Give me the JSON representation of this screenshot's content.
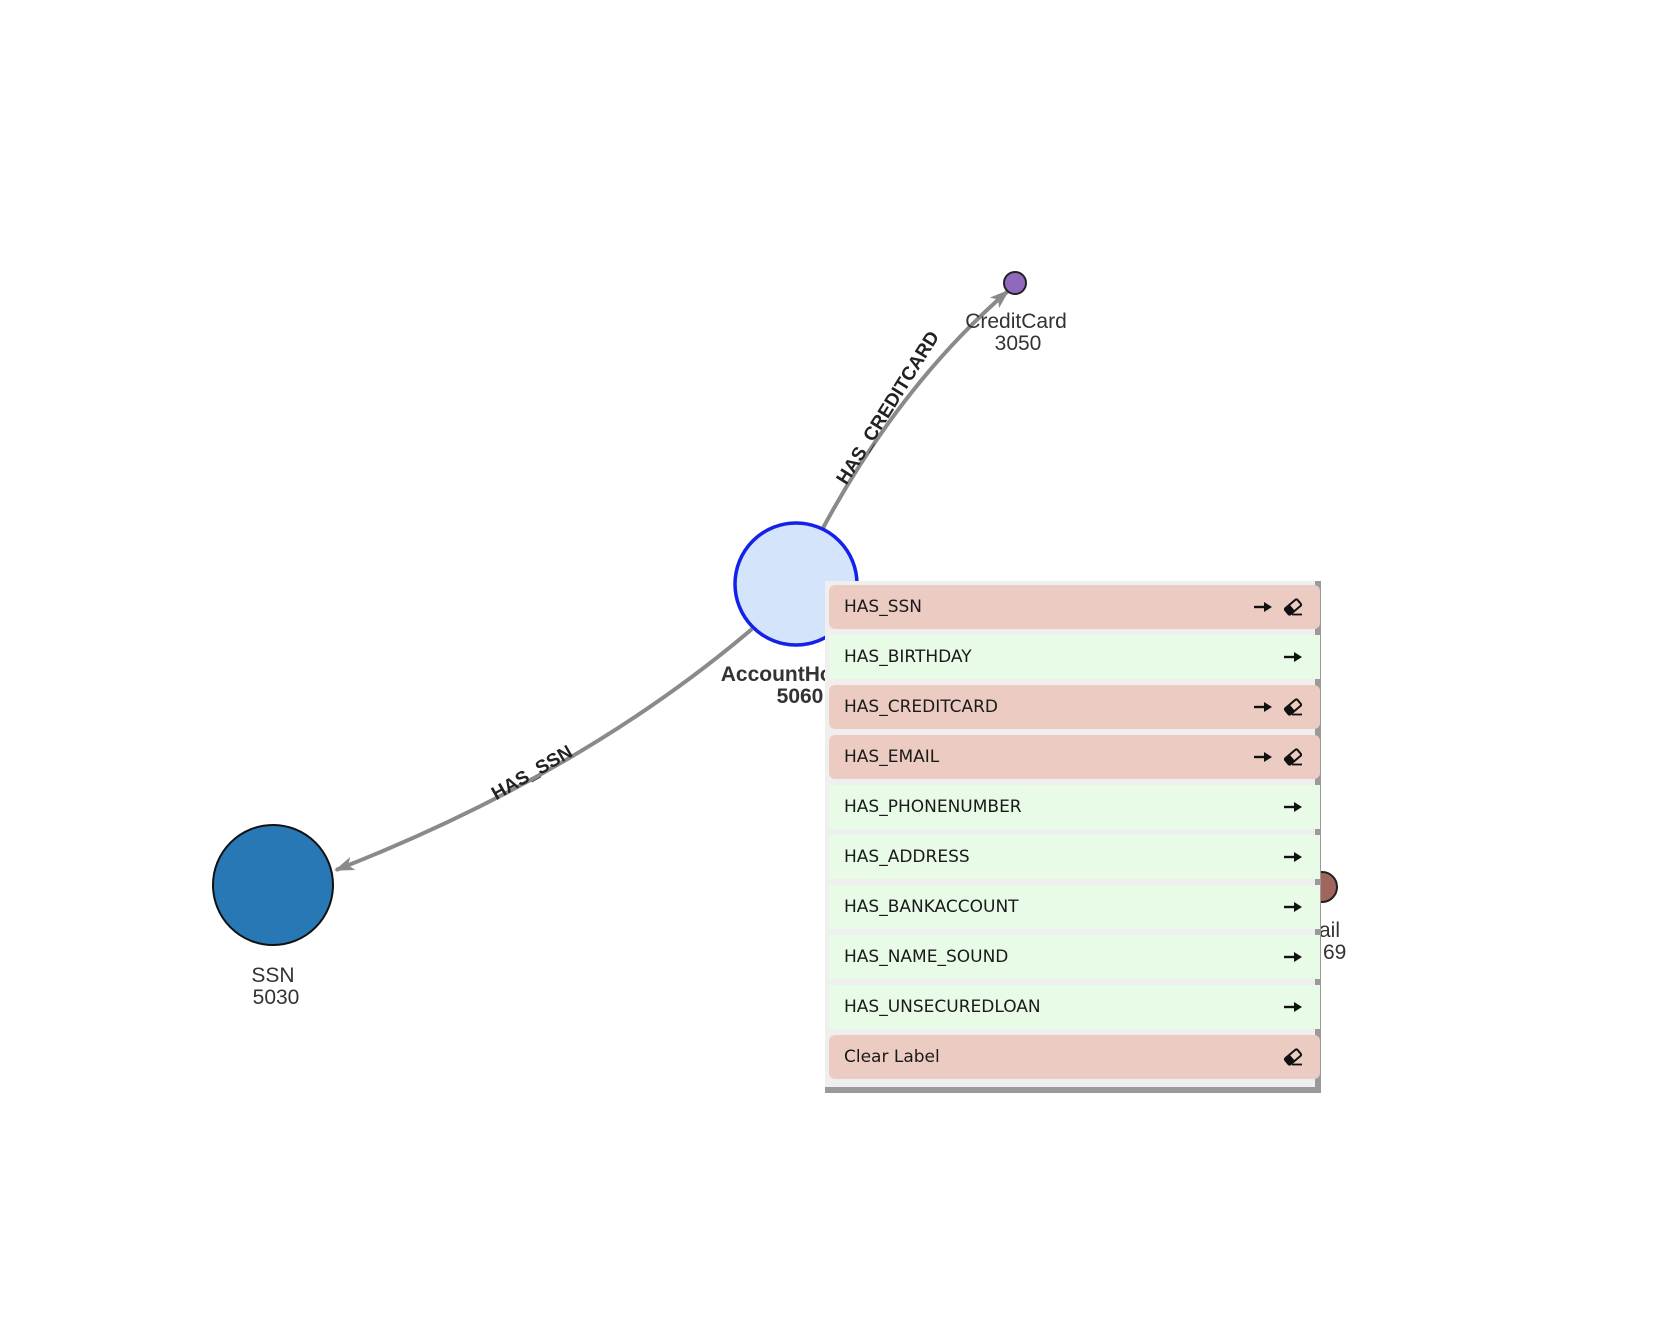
{
  "colors": {
    "edge": "#8a8a8a",
    "accountholder_fill": "#d3e4fb",
    "accountholder_stroke": "#1520e8",
    "ssn_fill": "#2778b4",
    "creditcard_fill": "#9069bf",
    "email_fill": "#a0665d",
    "menu_active": "#ecccc2",
    "menu_inactive": "#e7fbe7"
  },
  "graph": {
    "nodes": [
      {
        "id": "accountholder",
        "label": "AccountHolder",
        "id_value": "5060",
        "selected": true
      },
      {
        "id": "ssn",
        "label": "SSN",
        "id_value": "5030"
      },
      {
        "id": "creditcard",
        "label": "CreditCard",
        "id_value": "3050"
      },
      {
        "id": "email",
        "label_fragment": "ail",
        "id_fragment": "69"
      }
    ],
    "edges": [
      {
        "label": "HAS_CREDITCARD",
        "from": "accountholder",
        "to": "creditcard"
      },
      {
        "label": "HAS_SSN",
        "from": "accountholder",
        "to": "ssn"
      }
    ]
  },
  "menu": {
    "items": [
      {
        "label": "HAS_SSN",
        "active": true,
        "icons": [
          "arrow-right-icon",
          "eraser-icon"
        ]
      },
      {
        "label": "HAS_BIRTHDAY",
        "active": false,
        "icons": [
          "arrow-right-icon"
        ]
      },
      {
        "label": "HAS_CREDITCARD",
        "active": true,
        "icons": [
          "arrow-right-icon",
          "eraser-icon"
        ]
      },
      {
        "label": "HAS_EMAIL",
        "active": true,
        "icons": [
          "arrow-right-icon",
          "eraser-icon"
        ]
      },
      {
        "label": "HAS_PHONENUMBER",
        "active": false,
        "icons": [
          "arrow-right-icon"
        ]
      },
      {
        "label": "HAS_ADDRESS",
        "active": false,
        "icons": [
          "arrow-right-icon"
        ]
      },
      {
        "label": "HAS_BANKACCOUNT",
        "active": false,
        "icons": [
          "arrow-right-icon"
        ]
      },
      {
        "label": "HAS_NAME_SOUND",
        "active": false,
        "icons": [
          "arrow-right-icon"
        ]
      },
      {
        "label": "HAS_UNSECUREDLOAN",
        "active": false,
        "icons": [
          "arrow-right-icon"
        ]
      },
      {
        "label": "Clear Label",
        "active": true,
        "icons": [
          "eraser-icon"
        ]
      }
    ]
  }
}
